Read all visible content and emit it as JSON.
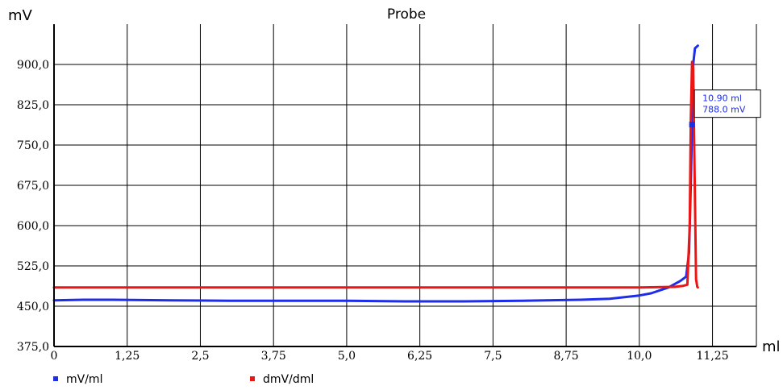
{
  "chart_data": {
    "type": "line",
    "title": "Probe",
    "xlabel": "ml",
    "ylabel": "mV",
    "xlim": [
      0,
      12
    ],
    "ylim": [
      375,
      975
    ],
    "grid": true,
    "legend_placement": "bottom-left",
    "x_ticks": [
      "0",
      "1,25",
      "2,5",
      "3,75",
      "5,0",
      "6,25",
      "7,5",
      "8,75",
      "10,0",
      "11,25"
    ],
    "x_tick_values": [
      0,
      1.25,
      2.5,
      3.75,
      5.0,
      6.25,
      7.5,
      8.75,
      10.0,
      11.25
    ],
    "y_ticks": [
      "375,0",
      "450,0",
      "525,0",
      "600,0",
      "675,0",
      "750,0",
      "825,0",
      "900,0"
    ],
    "y_tick_values": [
      375,
      450,
      525,
      600,
      675,
      750,
      825,
      900
    ],
    "series": [
      {
        "name": "mV/ml",
        "color": "#1e2de8",
        "x": [
          0,
          0.5,
          1.0,
          2.0,
          3.0,
          4.0,
          5.0,
          6.0,
          7.0,
          8.0,
          9.0,
          9.5,
          10.0,
          10.2,
          10.5,
          10.7,
          10.8,
          10.85,
          10.88,
          10.9,
          10.92,
          10.95,
          11.0
        ],
        "y": [
          461,
          462,
          462,
          461,
          460,
          460,
          460,
          459,
          459,
          460,
          462,
          464,
          470,
          474,
          485,
          497,
          505,
          550,
          680,
          788,
          900,
          930,
          935
        ]
      },
      {
        "name": "dmV/dml",
        "color": "#ee1515",
        "x": [
          0,
          2.0,
          4.0,
          6.0,
          8.0,
          10.0,
          10.6,
          10.75,
          10.82,
          10.86,
          10.88,
          10.9,
          10.92,
          10.95,
          10.97,
          10.99,
          11.0
        ],
        "y": [
          485,
          485,
          485,
          485,
          485,
          485,
          486,
          488,
          490,
          600,
          800,
          905,
          895,
          650,
          500,
          486,
          485
        ]
      }
    ],
    "annotation": {
      "x": 10.9,
      "y": 788.0,
      "lines": [
        "10.90 ml",
        "788.0 mV"
      ]
    }
  }
}
